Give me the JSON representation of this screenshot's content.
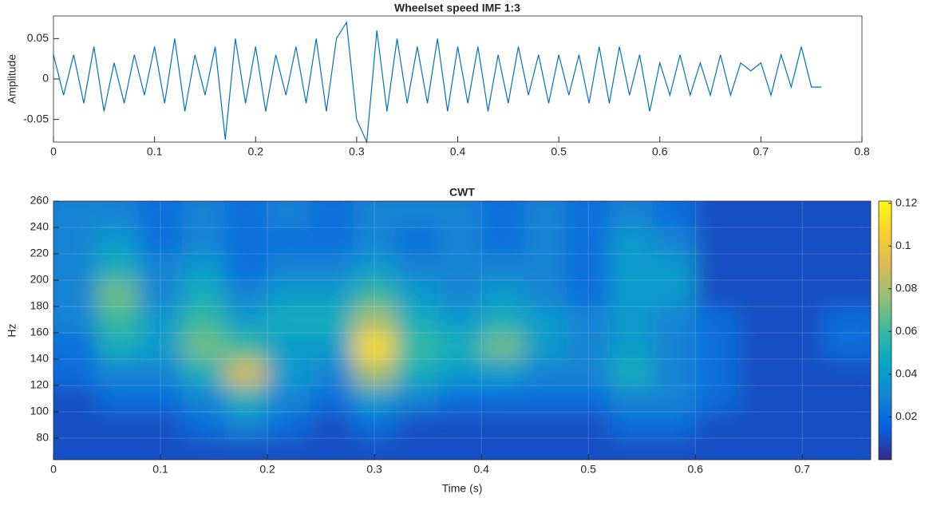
{
  "chart_data": [
    {
      "type": "line",
      "title": "Wheelset speed IMF 1:3",
      "ylabel": "Amplitude",
      "x": [
        0,
        0.01,
        0.02,
        0.03,
        0.04,
        0.05,
        0.06,
        0.07,
        0.08,
        0.09,
        0.1,
        0.11,
        0.12,
        0.13,
        0.14,
        0.15,
        0.16,
        0.17,
        0.18,
        0.19,
        0.2,
        0.21,
        0.22,
        0.23,
        0.24,
        0.25,
        0.26,
        0.27,
        0.28,
        0.29,
        0.3,
        0.31,
        0.32,
        0.33,
        0.34,
        0.35,
        0.36,
        0.37,
        0.38,
        0.39,
        0.4,
        0.41,
        0.42,
        0.43,
        0.44,
        0.45,
        0.46,
        0.47,
        0.48,
        0.49,
        0.5,
        0.51,
        0.52,
        0.53,
        0.54,
        0.55,
        0.56,
        0.57,
        0.58,
        0.59,
        0.6,
        0.61,
        0.62,
        0.63,
        0.64,
        0.65,
        0.66,
        0.67,
        0.68,
        0.69,
        0.7,
        0.71,
        0.72,
        0.73,
        0.74,
        0.75,
        0.76
      ],
      "series": [
        {
          "color": "#0072bd",
          "values": [
            0.03,
            -0.02,
            0.03,
            -0.03,
            0.04,
            -0.04,
            0.02,
            -0.03,
            0.03,
            -0.02,
            0.04,
            -0.03,
            0.05,
            -0.04,
            0.03,
            -0.02,
            0.04,
            -0.075,
            0.05,
            -0.03,
            0.04,
            -0.04,
            0.03,
            -0.02,
            0.04,
            -0.03,
            0.05,
            -0.04,
            0.05,
            0.07,
            -0.05,
            -0.078,
            0.06,
            -0.04,
            0.05,
            -0.03,
            0.04,
            -0.03,
            0.05,
            -0.04,
            0.04,
            -0.03,
            0.04,
            -0.04,
            0.03,
            -0.03,
            0.04,
            -0.02,
            0.03,
            -0.03,
            0.03,
            -0.02,
            0.03,
            -0.03,
            0.04,
            -0.03,
            0.04,
            -0.02,
            0.03,
            -0.04,
            0.02,
            -0.02,
            0.03,
            -0.02,
            0.02,
            -0.02,
            0.03,
            -0.02,
            0.02,
            0.01,
            0.02,
            -0.02,
            0.03,
            -0.01,
            0.04,
            -0.01,
            -0.01
          ]
        }
      ],
      "xlim": [
        0,
        0.8
      ],
      "xticks": [
        0,
        0.1,
        0.2,
        0.3,
        0.4,
        0.5,
        0.6,
        0.7,
        0.8
      ],
      "ylim": [
        -0.078,
        0.078
      ],
      "yticks": [
        -0.05,
        0,
        0.05
      ]
    },
    {
      "type": "heatmap",
      "title": "CWT",
      "xlabel": "Time (s)",
      "ylabel": "Hz",
      "x": [
        0.02,
        0.06,
        0.1,
        0.14,
        0.18,
        0.22,
        0.26,
        0.3,
        0.34,
        0.38,
        0.42,
        0.46,
        0.5,
        0.54,
        0.58,
        0.62,
        0.66,
        0.7,
        0.74
      ],
      "y": [
        70,
        90,
        110,
        130,
        150,
        170,
        190,
        210,
        230,
        250
      ],
      "z": [
        [
          0.01,
          0.01,
          0.01,
          0.01,
          0.01,
          0.01,
          0.01,
          0.01,
          0.01,
          0.01,
          0.01,
          0.01,
          0.01,
          0.01,
          0.01,
          0.01,
          0.01,
          0.01,
          0.01
        ],
        [
          0.01,
          0.01,
          0.01,
          0.02,
          0.03,
          0.02,
          0.01,
          0.02,
          0.01,
          0.01,
          0.01,
          0.01,
          0.01,
          0.02,
          0.02,
          0.01,
          0.01,
          0.01,
          0.01
        ],
        [
          0.01,
          0.02,
          0.02,
          0.03,
          0.05,
          0.03,
          0.02,
          0.04,
          0.03,
          0.02,
          0.02,
          0.02,
          0.02,
          0.03,
          0.03,
          0.02,
          0.01,
          0.01,
          0.01
        ],
        [
          0.02,
          0.03,
          0.03,
          0.05,
          0.09,
          0.04,
          0.03,
          0.08,
          0.05,
          0.04,
          0.04,
          0.03,
          0.03,
          0.05,
          0.03,
          0.02,
          0.01,
          0.01,
          0.01
        ],
        [
          0.02,
          0.05,
          0.04,
          0.07,
          0.06,
          0.04,
          0.04,
          0.11,
          0.06,
          0.05,
          0.07,
          0.04,
          0.03,
          0.04,
          0.03,
          0.02,
          0.01,
          0.01,
          0.02
        ],
        [
          0.03,
          0.06,
          0.04,
          0.06,
          0.04,
          0.05,
          0.05,
          0.08,
          0.05,
          0.04,
          0.05,
          0.04,
          0.03,
          0.04,
          0.03,
          0.02,
          0.01,
          0.01,
          0.02
        ],
        [
          0.03,
          0.07,
          0.03,
          0.05,
          0.03,
          0.04,
          0.04,
          0.06,
          0.04,
          0.03,
          0.04,
          0.03,
          0.02,
          0.04,
          0.04,
          0.01,
          0.01,
          0.01,
          0.01
        ],
        [
          0.03,
          0.05,
          0.03,
          0.04,
          0.02,
          0.03,
          0.03,
          0.04,
          0.03,
          0.03,
          0.03,
          0.03,
          0.02,
          0.04,
          0.04,
          0.01,
          0.01,
          0.01,
          0.01
        ],
        [
          0.03,
          0.04,
          0.02,
          0.03,
          0.02,
          0.02,
          0.02,
          0.03,
          0.02,
          0.03,
          0.02,
          0.03,
          0.02,
          0.04,
          0.03,
          0.01,
          0.01,
          0.01,
          0.01
        ],
        [
          0.03,
          0.03,
          0.02,
          0.03,
          0.02,
          0.03,
          0.02,
          0.03,
          0.03,
          0.03,
          0.02,
          0.03,
          0.02,
          0.03,
          0.02,
          0.01,
          0.01,
          0.01,
          0.01
        ]
      ],
      "colormap": [
        "#352a87",
        "#0363e1",
        "#1485d4",
        "#06a7c6",
        "#38b99e",
        "#92bf73",
        "#d9ba56",
        "#fcce2e",
        "#f9fb0e"
      ],
      "clim": [
        0,
        0.121
      ],
      "cticks": [
        0.02,
        0.04,
        0.06,
        0.08,
        0.1,
        0.12
      ],
      "xlim": [
        0,
        0.764
      ],
      "xticks": [
        0,
        0.1,
        0.2,
        0.3,
        0.4,
        0.5,
        0.6,
        0.7
      ],
      "ylim": [
        63.6,
        260
      ],
      "yticks": [
        80,
        100,
        120,
        140,
        160,
        180,
        200,
        220,
        240,
        260
      ],
      "grid": true
    }
  ]
}
